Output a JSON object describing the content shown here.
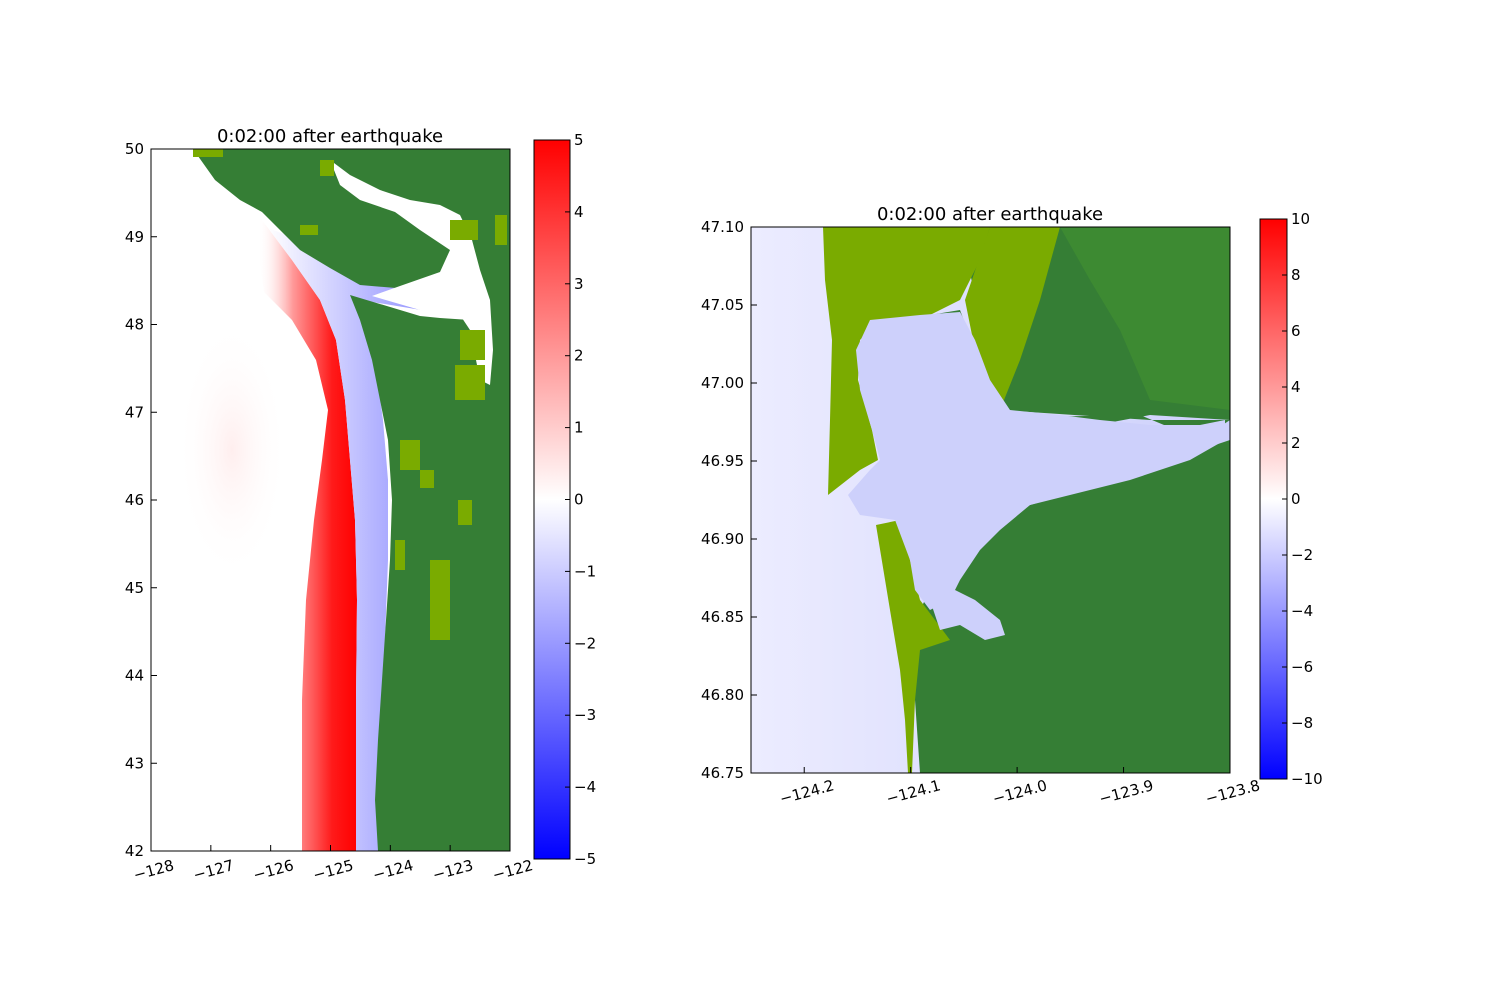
{
  "chart_data": [
    {
      "type": "heatmap",
      "title": "0:02:00 after earthquake",
      "xlabel": "",
      "ylabel": "",
      "xlim": [
        -128,
        -122
      ],
      "ylim": [
        42,
        50
      ],
      "xticks": [
        -128,
        -127,
        -126,
        -125,
        -124,
        -123,
        -122
      ],
      "xtick_labels": [
        "−128",
        "−127",
        "−126",
        "−125",
        "−124",
        "−123",
        "−122"
      ],
      "yticks": [
        42,
        43,
        44,
        45,
        46,
        47,
        48,
        49,
        50
      ],
      "ytick_labels": [
        "42",
        "43",
        "44",
        "45",
        "46",
        "47",
        "48",
        "49",
        "50"
      ],
      "colorbar": {
        "range": [
          -5,
          5
        ],
        "ticks": [
          -5,
          -4,
          -3,
          -2,
          -1,
          0,
          1,
          2,
          3,
          4,
          5
        ],
        "tick_labels": [
          "−5",
          "−4",
          "−3",
          "−2",
          "−1",
          "0",
          "1",
          "2",
          "3",
          "4",
          "5"
        ],
        "colormap": [
          "#0000ff",
          "#ffffff",
          "#ff0000"
        ]
      },
      "land_colors": [
        "#357e35",
        "#7aab00"
      ],
      "grid": false
    },
    {
      "type": "heatmap",
      "title": "0:02:00 after earthquake",
      "xlabel": "",
      "ylabel": "",
      "xlim": [
        -124.25,
        -123.8
      ],
      "ylim": [
        46.75,
        47.1
      ],
      "xticks": [
        -124.2,
        -124.1,
        -124.0,
        -123.9,
        -123.8
      ],
      "xtick_labels": [
        "−124.2",
        "−124.1",
        "−124.0",
        "−123.9",
        "−123.8"
      ],
      "yticks": [
        46.75,
        46.8,
        46.85,
        46.9,
        46.95,
        47.0,
        47.05,
        47.1
      ],
      "ytick_labels": [
        "46.75",
        "46.80",
        "46.85",
        "46.90",
        "46.95",
        "47.00",
        "47.05",
        "47.10"
      ],
      "colorbar": {
        "range": [
          -10,
          10
        ],
        "ticks": [
          -10,
          -8,
          -6,
          -4,
          -2,
          0,
          2,
          4,
          6,
          8,
          10
        ],
        "tick_labels": [
          "−10",
          "−8",
          "−6",
          "−4",
          "−2",
          "0",
          "2",
          "4",
          "6",
          "8",
          "10"
        ],
        "colormap": [
          "#0000ff",
          "#ffffff",
          "#ff0000"
        ]
      },
      "land_colors": [
        "#357e35",
        "#7aab00"
      ],
      "grid": false
    }
  ]
}
